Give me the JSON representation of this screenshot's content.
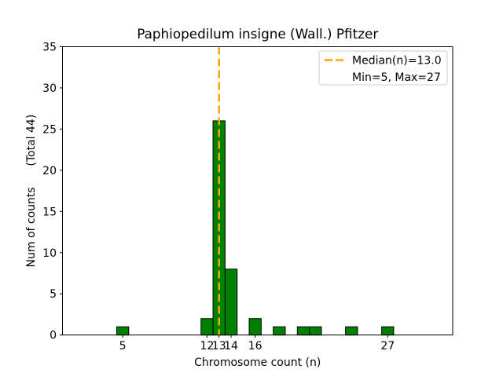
{
  "figure": {
    "background": "#ffffff"
  },
  "chart_data": {
    "type": "bar",
    "title": "Paphiopedilum insigne (Wall.) Pfitzer",
    "xlabel": "Chromosome count (n)",
    "ylabel": "Num of counts      (Total 44)",
    "total_counts": 44,
    "x": [
      5,
      12,
      13,
      14,
      16,
      18,
      20,
      21,
      24,
      27
    ],
    "values": [
      1,
      2,
      26,
      8,
      2,
      1,
      1,
      1,
      1,
      1
    ],
    "bar_width": 1.0,
    "xlim": [
      0,
      32.4
    ],
    "ylim": [
      0,
      35
    ],
    "xticks": [
      5,
      12,
      13,
      14,
      16,
      27
    ],
    "yticks": [
      0,
      5,
      10,
      15,
      20,
      25,
      30,
      35
    ],
    "grid": false,
    "median_line": {
      "x": 13.0,
      "style": "dashed",
      "color": "#FFA500"
    },
    "legend": {
      "position": "upper right",
      "entries": [
        {
          "swatch": "dashed-line",
          "label": "Median(n)=13.0"
        },
        {
          "swatch": "none",
          "label": "Min=5, Max=27"
        }
      ]
    },
    "colors": {
      "bar_fill": "#008000",
      "bar_edge": "#000000",
      "median": "#FFA500",
      "axis": "#000000",
      "legend_border": "#cccccc",
      "legend_bg": "#ffffff",
      "background": "#ffffff"
    }
  }
}
